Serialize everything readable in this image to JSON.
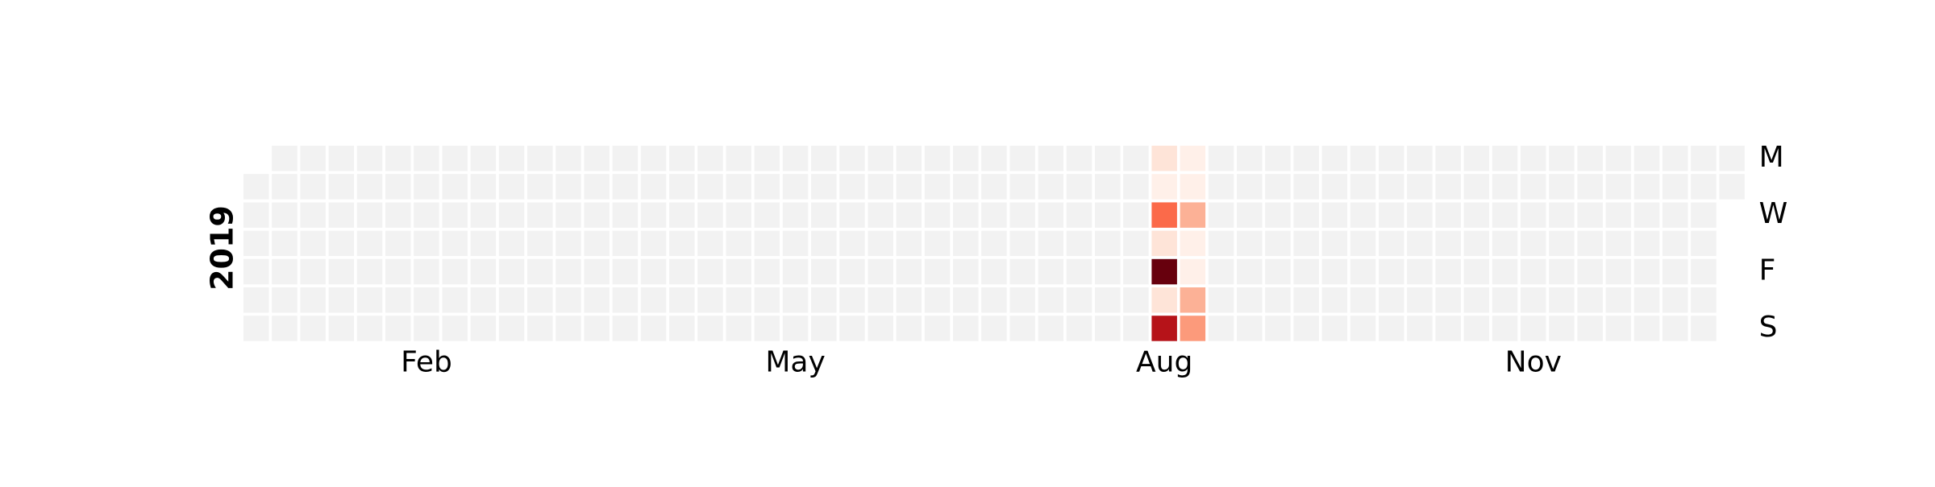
{
  "chart_data": {
    "type": "heatmap",
    "subtype": "calendar",
    "year_label": "2019",
    "month_labels": [
      "Feb",
      "May",
      "Aug",
      "Nov"
    ],
    "day_labels": [
      "M",
      "W",
      "F",
      "S"
    ],
    "colormap": "Reds",
    "empty_color": "#f2f2f2",
    "value_scale": [
      0,
      1
    ],
    "values": [
      {
        "date": "2019-08-12",
        "value": 0.1
      },
      {
        "date": "2019-08-13",
        "value": 0.03
      },
      {
        "date": "2019-08-14",
        "value": 0.5
      },
      {
        "date": "2019-08-15",
        "value": 0.1
      },
      {
        "date": "2019-08-16",
        "value": 1.0
      },
      {
        "date": "2019-08-17",
        "value": 0.1
      },
      {
        "date": "2019-08-18",
        "value": 0.82
      },
      {
        "date": "2019-08-19",
        "value": 0.03
      },
      {
        "date": "2019-08-20",
        "value": 0.03
      },
      {
        "date": "2019-08-21",
        "value": 0.28
      },
      {
        "date": "2019-08-22",
        "value": 0.03
      },
      {
        "date": "2019-08-23",
        "value": 0.03
      },
      {
        "date": "2019-08-24",
        "value": 0.28
      },
      {
        "date": "2019-08-25",
        "value": 0.35
      }
    ]
  }
}
